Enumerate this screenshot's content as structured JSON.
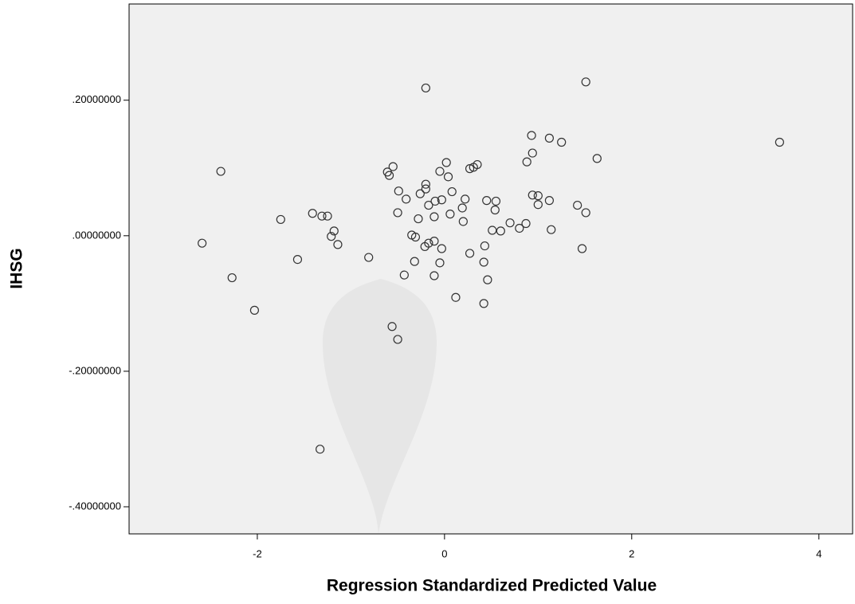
{
  "chart_data": {
    "type": "scatter",
    "x_label": "Regression Standardized Predicted Value",
    "y_label": "IHSG",
    "color": "#333333",
    "background": "#f0f0f0",
    "x": [
      -0.2,
      1.51,
      3.58,
      1.63,
      0.93,
      1.12,
      1.25,
      0.94,
      0.88,
      -2.39,
      0.02,
      -0.05,
      0.04,
      0.27,
      0.31,
      0.35,
      -0.61,
      -0.59,
      -0.55,
      -0.2,
      -0.2,
      -0.49,
      -0.41,
      -0.26,
      0.08,
      -0.17,
      -0.1,
      -0.03,
      0.22,
      0.19,
      0.45,
      0.55,
      0.54,
      0.94,
      1.0,
      1.12,
      1.0,
      1.42,
      1.51,
      -0.5,
      -0.28,
      0.06,
      -0.11,
      0.2,
      0.7,
      0.87,
      0.8,
      0.6,
      0.51,
      1.14,
      -1.41,
      -1.31,
      -1.25,
      -1.75,
      -1.18,
      -1.21,
      -1.14,
      -2.59,
      -0.35,
      -0.31,
      -0.17,
      -0.11,
      -0.21,
      -0.03,
      0.43,
      0.27,
      1.47,
      -1.57,
      -0.81,
      -0.32,
      -0.05,
      0.42,
      -2.27,
      -0.43,
      -0.11,
      0.46,
      0.12,
      0.42,
      -2.03,
      -0.56,
      -0.5,
      -1.33
    ],
    "y": [
      0.218,
      0.227,
      0.138,
      0.114,
      0.148,
      0.144,
      0.138,
      0.122,
      0.109,
      0.095,
      0.108,
      0.095,
      0.087,
      0.099,
      0.101,
      0.105,
      0.094,
      0.089,
      0.102,
      0.076,
      0.069,
      0.066,
      0.054,
      0.062,
      0.065,
      0.045,
      0.051,
      0.053,
      0.054,
      0.041,
      0.052,
      0.051,
      0.038,
      0.06,
      0.059,
      0.052,
      0.046,
      0.045,
      0.034,
      0.034,
      0.025,
      0.032,
      0.028,
      0.021,
      0.019,
      0.018,
      0.011,
      0.007,
      0.008,
      0.009,
      0.033,
      0.029,
      0.029,
      0.024,
      0.007,
      -0.001,
      -0.013,
      -0.011,
      0.001,
      -0.002,
      -0.011,
      -0.008,
      -0.016,
      -0.019,
      -0.015,
      -0.026,
      -0.019,
      -0.035,
      -0.032,
      -0.038,
      -0.04,
      -0.039,
      -0.062,
      -0.058,
      -0.059,
      -0.065,
      -0.091,
      -0.1,
      -0.11,
      -0.134,
      -0.153,
      -0.315
    ],
    "xlim": [
      -3.37,
      4.36
    ],
    "ylim": [
      -0.44,
      0.342
    ],
    "xticks": [
      -2,
      0,
      2,
      4
    ],
    "yticks": [
      {
        "value": 0.2,
        "label": ".20000000"
      },
      {
        "value": 0,
        "label": ".00000000"
      },
      {
        "value": -0.2,
        "label": "-.20000000"
      },
      {
        "value": -0.4,
        "label": "-.40000000"
      }
    ]
  }
}
